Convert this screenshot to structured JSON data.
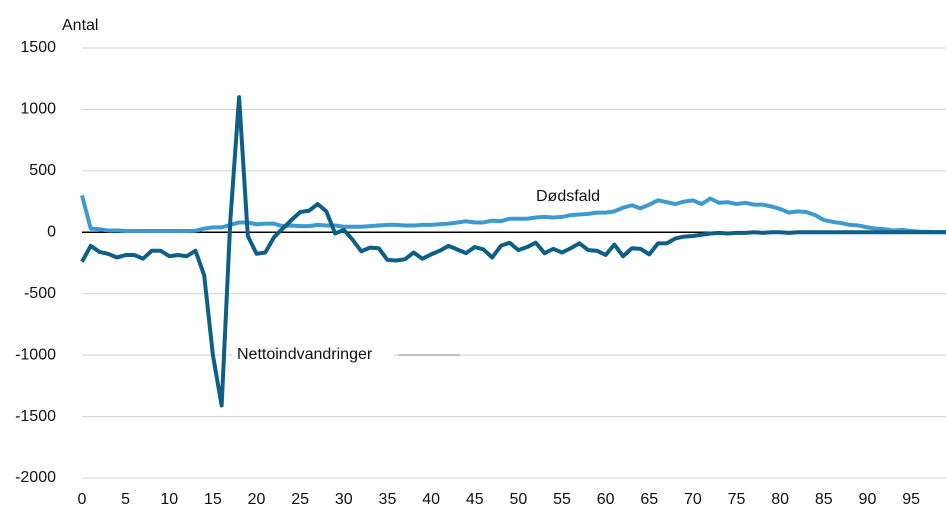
{
  "chart_data": {
    "type": "line",
    "y_label": "Antal",
    "x": [
      0,
      1,
      2,
      3,
      4,
      5,
      6,
      7,
      8,
      9,
      10,
      11,
      12,
      13,
      14,
      15,
      16,
      17,
      18,
      19,
      20,
      21,
      22,
      23,
      24,
      25,
      26,
      27,
      28,
      29,
      30,
      31,
      32,
      33,
      34,
      35,
      36,
      37,
      38,
      39,
      40,
      41,
      42,
      43,
      44,
      45,
      46,
      47,
      48,
      49,
      50,
      51,
      52,
      53,
      54,
      55,
      56,
      57,
      58,
      59,
      60,
      61,
      62,
      63,
      64,
      65,
      66,
      67,
      68,
      69,
      70,
      71,
      72,
      73,
      74,
      75,
      76,
      77,
      78,
      79,
      80,
      81,
      82,
      83,
      84,
      85,
      86,
      87,
      88,
      89,
      90,
      91,
      92,
      93,
      94,
      95,
      96,
      97,
      98,
      99
    ],
    "series": [
      {
        "name": "Dødsfald",
        "color": "#3d9ad1",
        "values": [
          300,
          30,
          25,
          15,
          15,
          10,
          10,
          10,
          10,
          10,
          10,
          10,
          10,
          12,
          30,
          40,
          40,
          60,
          80,
          80,
          65,
          70,
          70,
          50,
          55,
          50,
          50,
          60,
          55,
          55,
          45,
          45,
          45,
          50,
          55,
          60,
          60,
          55,
          55,
          60,
          60,
          65,
          70,
          80,
          90,
          80,
          80,
          95,
          90,
          110,
          110,
          110,
          120,
          125,
          120,
          125,
          140,
          145,
          150,
          160,
          160,
          170,
          200,
          220,
          195,
          225,
          260,
          245,
          230,
          250,
          260,
          230,
          275,
          240,
          245,
          230,
          240,
          225,
          225,
          210,
          190,
          160,
          170,
          165,
          140,
          100,
          85,
          75,
          60,
          55,
          40,
          30,
          25,
          15,
          20,
          10,
          5,
          3,
          2,
          1
        ]
      },
      {
        "name": "Nettoindvandringer",
        "color": "#0e5f86",
        "values": [
          -240,
          -110,
          -160,
          -175,
          -205,
          -185,
          -185,
          -215,
          -150,
          -150,
          -195,
          -185,
          -195,
          -150,
          -350,
          -1000,
          -1410,
          100,
          1100,
          -30,
          -175,
          -165,
          -40,
          30,
          100,
          165,
          175,
          230,
          170,
          -10,
          20,
          -60,
          -155,
          -125,
          -130,
          -225,
          -230,
          -220,
          -165,
          -215,
          -180,
          -150,
          -110,
          -140,
          -170,
          -120,
          -140,
          -205,
          -110,
          -85,
          -145,
          -120,
          -85,
          -170,
          -135,
          -165,
          -130,
          -90,
          -145,
          -150,
          -185,
          -100,
          -195,
          -130,
          -135,
          -180,
          -90,
          -90,
          -50,
          -35,
          -30,
          -20,
          -10,
          -5,
          -10,
          -5,
          -5,
          0,
          -5,
          0,
          0,
          -5,
          0,
          0,
          0,
          0,
          0,
          0,
          0,
          0,
          0,
          0,
          0,
          0,
          0,
          0,
          0,
          0,
          0,
          0
        ]
      }
    ],
    "xlim": [
      0,
      99
    ],
    "xticks": [
      0,
      5,
      10,
      15,
      20,
      25,
      30,
      35,
      40,
      45,
      50,
      55,
      60,
      65,
      70,
      75,
      80,
      85,
      90,
      95
    ],
    "ylim": [
      -2000,
      1500
    ],
    "yticks": [
      -2000,
      -1500,
      -1000,
      -500,
      0,
      500,
      1000,
      1500
    ],
    "grid": true
  }
}
